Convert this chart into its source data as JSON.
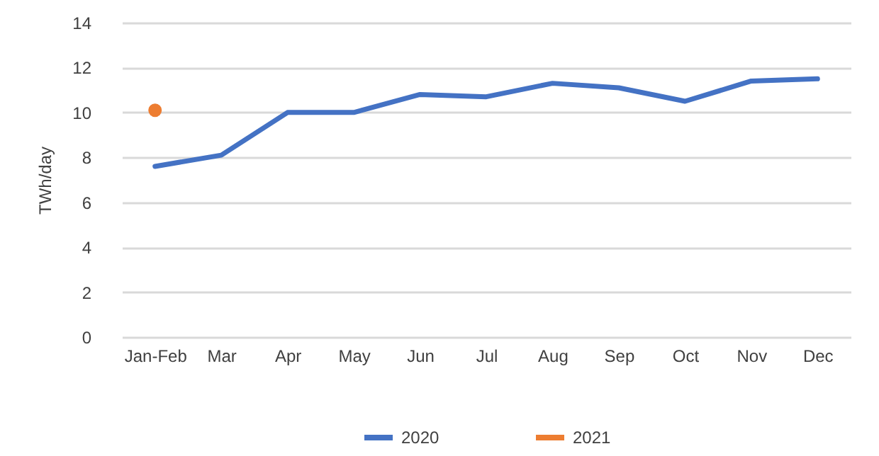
{
  "chart_data": {
    "type": "line",
    "ylabel": "TWh/day",
    "categories": [
      "Jan-Feb",
      "Mar",
      "Apr",
      "May",
      "Jun",
      "Jul",
      "Aug",
      "Sep",
      "Oct",
      "Nov",
      "Dec"
    ],
    "series": [
      {
        "name": "2020",
        "color": "#4472c4",
        "marker": "none",
        "values": [
          7.6,
          8.1,
          10.0,
          10.0,
          10.8,
          10.7,
          11.3,
          11.1,
          10.5,
          11.4,
          11.5
        ]
      },
      {
        "name": "2021",
        "color": "#ed7d31",
        "marker": "circle",
        "values": [
          10.1,
          null,
          null,
          null,
          null,
          null,
          null,
          null,
          null,
          null,
          null
        ]
      }
    ],
    "ylim": [
      0,
      14
    ],
    "yticks": [
      0,
      2,
      4,
      6,
      8,
      10,
      12,
      14
    ],
    "grid": "y",
    "legend": "bottom"
  }
}
